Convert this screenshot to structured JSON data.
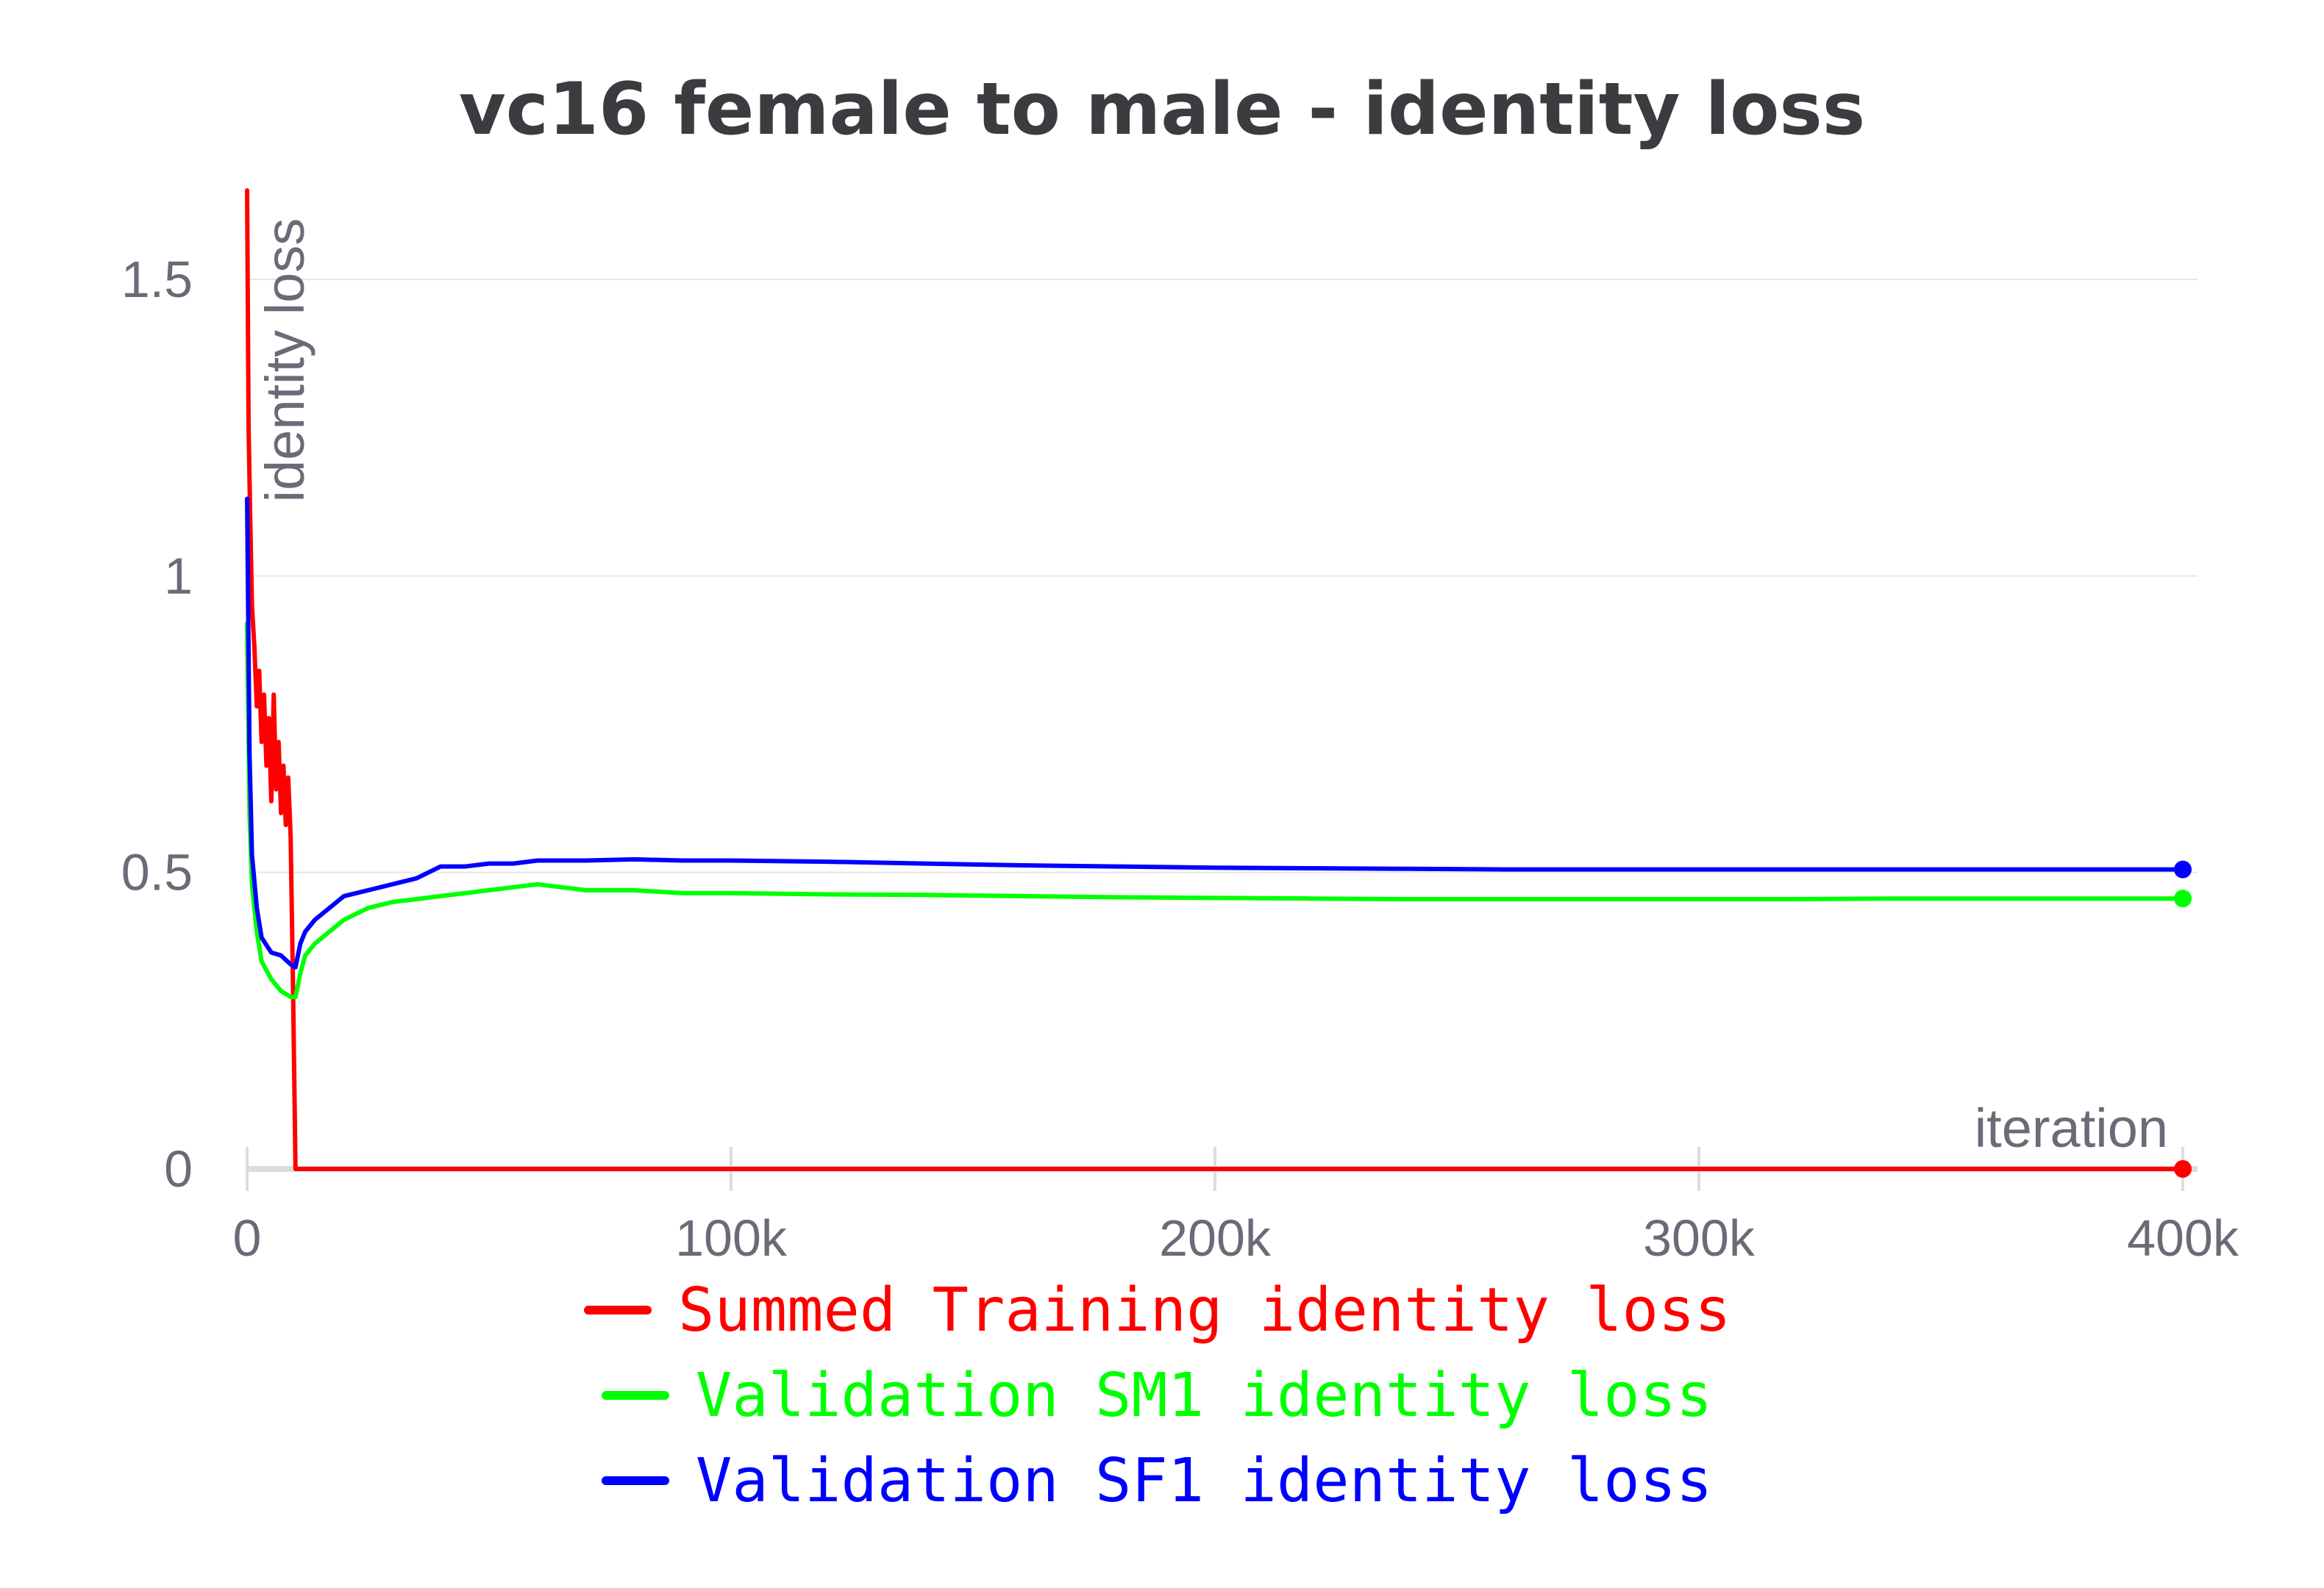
{
  "chart_data": {
    "type": "line",
    "title": "vc16 female to male - identity loss",
    "xlabel": "iteration",
    "ylabel": "identity loss",
    "xlim": [
      0,
      400000
    ],
    "ylim": [
      0,
      1.6
    ],
    "x_ticks": [
      {
        "value": 0,
        "label": "0"
      },
      {
        "value": 100000,
        "label": "100k"
      },
      {
        "value": 200000,
        "label": "200k"
      },
      {
        "value": 300000,
        "label": "300k"
      },
      {
        "value": 400000,
        "label": "400k"
      }
    ],
    "y_ticks": [
      {
        "value": 0,
        "label": "0"
      },
      {
        "value": 0.5,
        "label": "0.5"
      },
      {
        "value": 1,
        "label": "1"
      },
      {
        "value": 1.5,
        "label": "1.5"
      }
    ],
    "grid": true,
    "legend_position": "bottom",
    "series": [
      {
        "name": "Summed Training identity loss",
        "color": "#ff0000",
        "x": [
          0,
          300,
          600,
          1000,
          1500,
          2000,
          2500,
          3000,
          3500,
          4000,
          4500,
          5000,
          5500,
          6000,
          6500,
          7000,
          7500,
          8000,
          8500,
          9000,
          9500,
          10000,
          10500,
          400000
        ],
        "y": [
          1.66,
          1.25,
          1.12,
          0.95,
          0.88,
          0.78,
          0.84,
          0.72,
          0.8,
          0.68,
          0.76,
          0.62,
          0.8,
          0.64,
          0.72,
          0.6,
          0.68,
          0.58,
          0.66,
          0.56,
          0.3,
          0.0,
          0.0,
          0.0
        ]
      },
      {
        "name": "Validation SM1 identity loss",
        "color": "#00ff00",
        "x": [
          0,
          500,
          1000,
          2000,
          3000,
          5000,
          7000,
          9000,
          10000,
          11000,
          12000,
          14000,
          17000,
          20000,
          25000,
          30000,
          35000,
          40000,
          45000,
          50000,
          55000,
          60000,
          65000,
          70000,
          80000,
          90000,
          100000,
          120000,
          140000,
          160000,
          180000,
          200000,
          220000,
          240000,
          260000,
          280000,
          300000,
          320000,
          340000,
          360000,
          380000,
          400000
        ],
        "y": [
          0.92,
          0.6,
          0.48,
          0.4,
          0.35,
          0.32,
          0.3,
          0.29,
          0.29,
          0.33,
          0.36,
          0.38,
          0.4,
          0.42,
          0.44,
          0.45,
          0.455,
          0.46,
          0.465,
          0.47,
          0.475,
          0.48,
          0.475,
          0.47,
          0.47,
          0.465,
          0.465,
          0.463,
          0.462,
          0.46,
          0.458,
          0.457,
          0.456,
          0.455,
          0.455,
          0.455,
          0.455,
          0.455,
          0.456,
          0.456,
          0.456,
          0.456
        ]
      },
      {
        "name": "Validation SF1 identity loss",
        "color": "#0000ff",
        "x": [
          0,
          500,
          1000,
          2000,
          3000,
          5000,
          7000,
          9000,
          10000,
          11000,
          12000,
          14000,
          17000,
          20000,
          25000,
          30000,
          35000,
          40000,
          45000,
          50000,
          55000,
          60000,
          65000,
          70000,
          80000,
          90000,
          100000,
          120000,
          140000,
          160000,
          180000,
          200000,
          220000,
          240000,
          260000,
          280000,
          300000,
          320000,
          340000,
          360000,
          380000,
          400000
        ],
        "y": [
          1.13,
          0.7,
          0.53,
          0.44,
          0.39,
          0.365,
          0.36,
          0.345,
          0.34,
          0.38,
          0.4,
          0.42,
          0.44,
          0.46,
          0.47,
          0.48,
          0.49,
          0.51,
          0.51,
          0.515,
          0.515,
          0.52,
          0.52,
          0.52,
          0.522,
          0.52,
          0.52,
          0.518,
          0.515,
          0.512,
          0.51,
          0.508,
          0.507,
          0.506,
          0.505,
          0.505,
          0.505,
          0.505,
          0.505,
          0.505,
          0.505,
          0.505
        ]
      }
    ]
  }
}
